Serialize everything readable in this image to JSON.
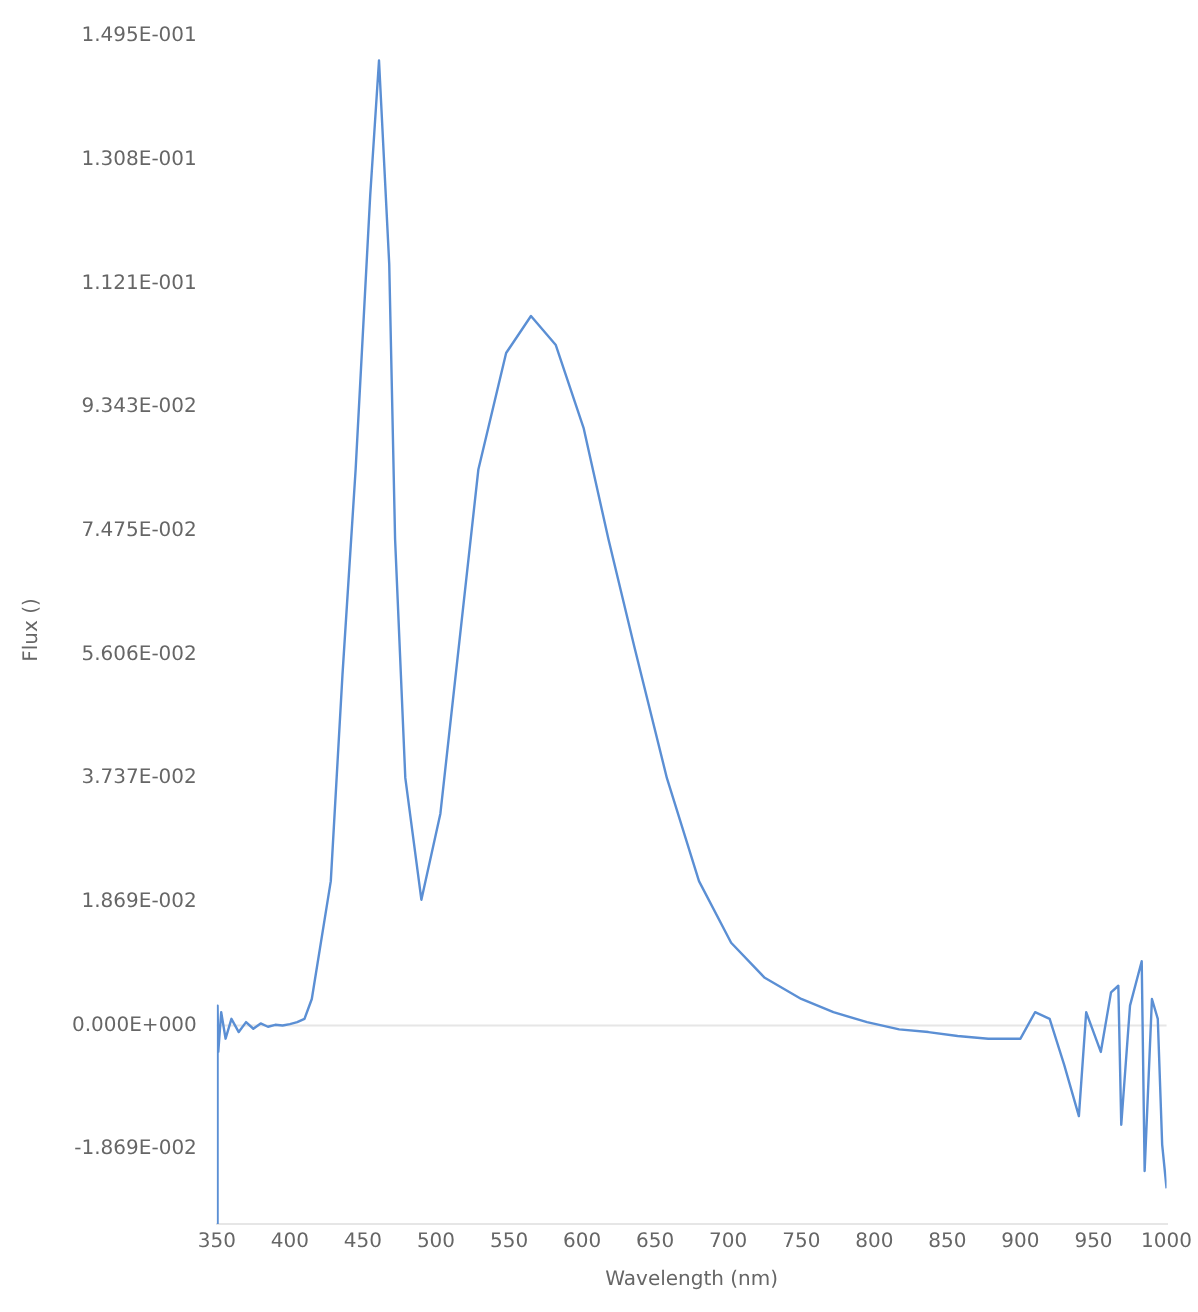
{
  "chart_data": {
    "type": "line",
    "xlabel": "Wavelength (nm)",
    "ylabel": "Flux ()",
    "x": [
      350,
      350.5,
      351,
      353,
      356,
      360,
      365,
      370,
      375,
      380,
      385,
      390,
      395,
      400,
      405,
      410,
      415,
      428,
      436,
      445,
      455,
      461,
      468,
      472,
      479,
      490,
      503,
      516,
      529,
      548,
      565,
      582,
      601,
      618,
      636,
      658,
      680,
      702,
      725,
      750,
      772,
      795,
      817,
      837,
      857,
      878,
      900,
      910,
      920,
      930,
      940,
      945,
      955,
      962,
      967,
      969,
      975,
      983,
      985,
      990,
      994,
      997,
      1000
    ],
    "series": [
      {
        "color": "#5b8fd4",
        "values": [
          -0.03,
          0.003,
          -0.004,
          0.002,
          -0.002,
          0.001,
          -0.001,
          0.0005,
          -0.0005,
          0.0003,
          -0.0002,
          0.0001,
          0,
          0.0002,
          0.0005,
          0.001,
          0.004,
          0.0218,
          0.053,
          0.084,
          0.1255,
          0.1458,
          0.115,
          0.0735,
          0.0374,
          0.019,
          0.032,
          0.058,
          0.084,
          0.1016,
          0.1072,
          0.1028,
          0.0903,
          0.0735,
          0.057,
          0.0374,
          0.0218,
          0.0125,
          0.0072,
          0.004,
          0.002,
          0.0005,
          -0.0006,
          -0.001,
          -0.0016,
          -0.002,
          -0.002,
          0.002,
          0.001,
          -0.006,
          -0.0137,
          0.002,
          -0.004,
          0.005,
          0.006,
          -0.015,
          0.003,
          0.0097,
          -0.022,
          0.004,
          0.001,
          -0.018,
          -0.0246
        ]
      }
    ],
    "xlim": [
      350,
      1000
    ],
    "xticks": [
      350,
      400,
      450,
      500,
      550,
      600,
      650,
      700,
      750,
      800,
      850,
      900,
      950,
      1000
    ],
    "ylim": [
      -0.03,
      0.1495
    ],
    "yticks": [
      {
        "value": -0.01869,
        "label": "-1.869E-002"
      },
      {
        "value": 0,
        "label": "0.000E+000"
      },
      {
        "value": 0.01869,
        "label": "1.869E-002"
      },
      {
        "value": 0.03737,
        "label": "3.737E-002"
      },
      {
        "value": 0.05606,
        "label": "5.606E-002"
      },
      {
        "value": 0.07475,
        "label": "7.475E-002"
      },
      {
        "value": 0.09343,
        "label": "9.343E-002"
      },
      {
        "value": 0.1121,
        "label": "1.121E-001"
      },
      {
        "value": 0.1308,
        "label": "1.308E-001"
      },
      {
        "value": 0.1495,
        "label": "1.495E-001"
      }
    ],
    "ref_lines": [
      {
        "axis": "y",
        "value": 0,
        "color": "#e6e6e6"
      }
    ],
    "grid": false,
    "legend": false,
    "marker": "none",
    "line_style": "solid"
  }
}
